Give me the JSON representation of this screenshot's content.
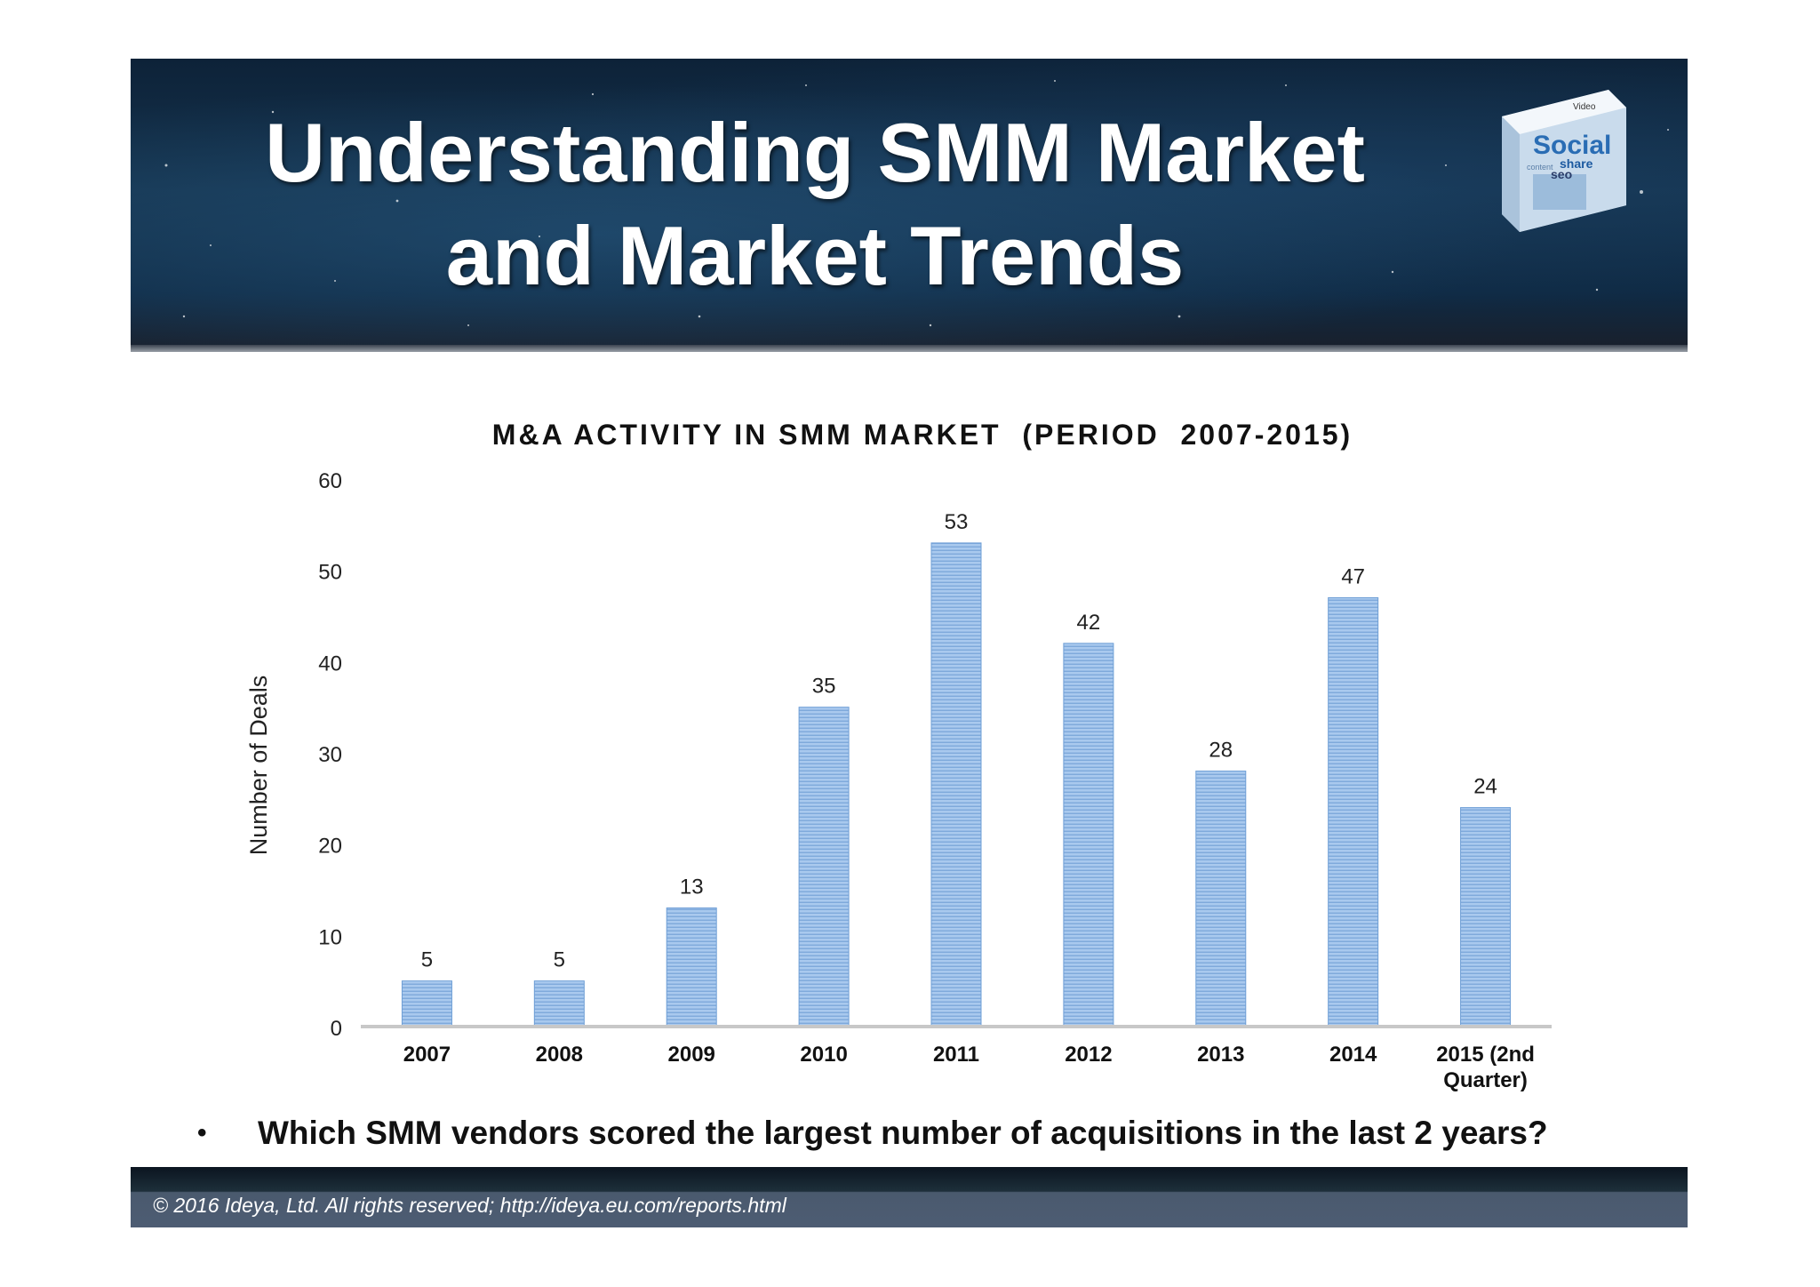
{
  "header": {
    "title_line1": "Understanding SMM Market",
    "title_line2": "and Market Trends",
    "logo_icon": "social-media-cube-icon",
    "logo_words": [
      "Social",
      "share",
      "seo",
      "Video",
      "content"
    ]
  },
  "chart_data": {
    "type": "bar",
    "title": "M&A ACTIVITY IN SMM MARKET  (PERIOD  2007-2015)",
    "xlabel": "",
    "ylabel": "Number of Deals",
    "ylim": [
      0,
      60
    ],
    "yticks": [
      0,
      10,
      20,
      30,
      40,
      50,
      60
    ],
    "categories": [
      "2007",
      "2008",
      "2009",
      "2010",
      "2011",
      "2012",
      "2013",
      "2014",
      "2015 (2nd Quarter)"
    ],
    "category_lines": [
      [
        "2007"
      ],
      [
        "2008"
      ],
      [
        "2009"
      ],
      [
        "2010"
      ],
      [
        "2011"
      ],
      [
        "2012"
      ],
      [
        "2013"
      ],
      [
        "2014"
      ],
      [
        "2015 (2nd",
        "Quarter)"
      ]
    ],
    "values": [
      5,
      5,
      13,
      35,
      53,
      42,
      28,
      47,
      24
    ],
    "data_labels": [
      "5",
      "5",
      "13",
      "35",
      "53",
      "42",
      "28",
      "47",
      "24"
    ],
    "bar_color": "#8fb8e6",
    "grid": false,
    "legend": "none"
  },
  "bullet": {
    "symbol": "•",
    "text": "Which SMM vendors scored the largest number of acquisitions in the last 2 years?"
  },
  "footer": {
    "text": "© 2016 Ideya, Ltd. All rights reserved;  http://ideya.eu.com/reports.html"
  }
}
